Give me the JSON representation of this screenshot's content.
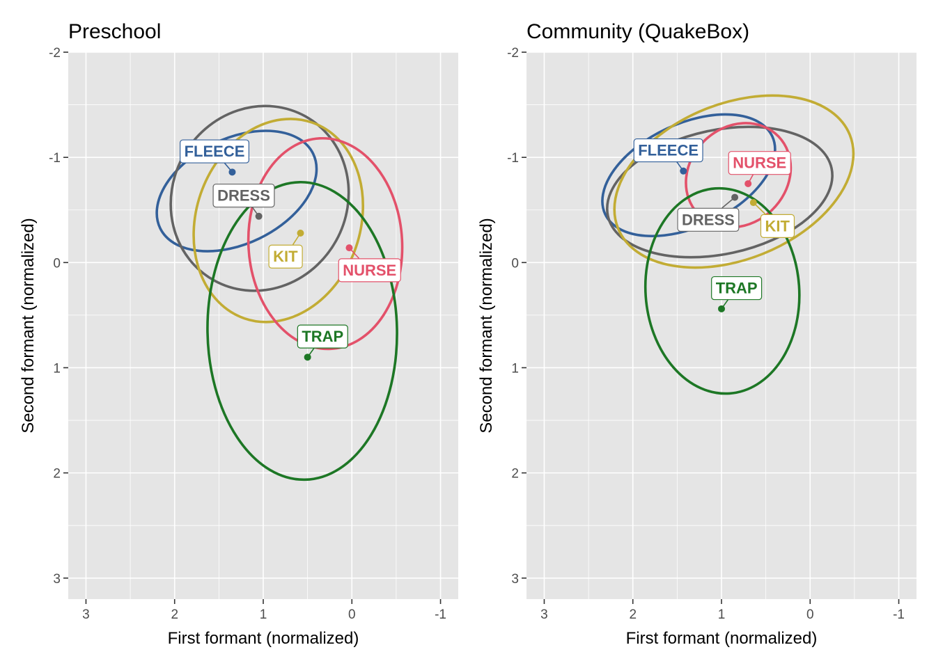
{
  "chart_data": [
    {
      "type": "scatter",
      "title": "Preschool",
      "xlabel": "First formant (normalized)",
      "ylabel": "Second formant (normalized)",
      "xlim": [
        3.2,
        -1.2
      ],
      "ylim": [
        -2.0,
        3.2
      ],
      "x_reversed": true,
      "y_reversed": true,
      "x_ticks": [
        3,
        2,
        1,
        0,
        -1
      ],
      "x_tick_labels": [
        "3",
        "2",
        "1",
        "0",
        "-1"
      ],
      "y_ticks": [
        -2,
        -1,
        0,
        1,
        2,
        3
      ],
      "y_tick_labels": [
        "-2",
        "-1",
        "0",
        "1",
        "2",
        "3"
      ],
      "grid": true,
      "series": [
        {
          "name": "FLEECE",
          "color": "#33609a",
          "mean": [
            1.35,
            -0.86
          ],
          "label_pos": [
            1.55,
            -1.06
          ],
          "ellipse": [
            [
              1.3,
              -0.68
            ],
            [
              0.96,
              0.5
            ],
            -26
          ]
        },
        {
          "name": "DRESS",
          "color": "#636363",
          "mean": [
            1.05,
            -0.44
          ],
          "label_pos": [
            1.22,
            -0.64
          ],
          "ellipse": [
            [
              1.04,
              -0.61
            ],
            [
              1.06,
              0.83
            ],
            -61
          ]
        },
        {
          "name": "KIT",
          "color": "#c2ac34",
          "mean": [
            0.58,
            -0.28
          ],
          "label_pos": [
            0.75,
            -0.06
          ],
          "ellipse": [
            [
              0.83,
              -0.4
            ],
            [
              1.17,
              0.78
            ],
            -71
          ]
        },
        {
          "name": "NURSE",
          "color": "#e3516a",
          "mean": [
            0.03,
            -0.14
          ],
          "label_pos": [
            -0.2,
            0.07
          ],
          "ellipse": [
            [
              0.3,
              -0.18
            ],
            [
              1.19,
              0.73
            ],
            -93
          ]
        },
        {
          "name": "TRAP",
          "color": "#1d7725",
          "mean": [
            0.5,
            0.9
          ],
          "label_pos": [
            0.33,
            0.7
          ],
          "ellipse": [
            [
              0.56,
              0.65
            ],
            [
              1.68,
              0.9
            ],
            -91
          ]
        }
      ]
    },
    {
      "type": "scatter",
      "title": "Community (QuakeBox)",
      "xlabel": "First formant (normalized)",
      "ylabel": "Second formant (normalized)",
      "xlim": [
        3.2,
        -1.2
      ],
      "ylim": [
        -2.0,
        3.2
      ],
      "x_reversed": true,
      "y_reversed": true,
      "x_ticks": [
        3,
        2,
        1,
        0,
        -1
      ],
      "x_tick_labels": [
        "3",
        "2",
        "1",
        "0",
        "-1"
      ],
      "y_ticks": [
        -2,
        -1,
        0,
        1,
        2,
        3
      ],
      "y_tick_labels": [
        "-2",
        "-1",
        "0",
        "1",
        "2",
        "3"
      ],
      "grid": true,
      "series": [
        {
          "name": "FLEECE",
          "color": "#33609a",
          "mean": [
            1.43,
            -0.87
          ],
          "label_pos": [
            1.6,
            -1.07
          ],
          "ellipse": [
            [
              1.37,
              -0.83
            ],
            [
              1.04,
              0.49
            ],
            -25
          ]
        },
        {
          "name": "DRESS",
          "color": "#636363",
          "mean": [
            0.85,
            -0.62
          ],
          "label_pos": [
            1.15,
            -0.41
          ],
          "ellipse": [
            [
              1.02,
              -0.67
            ],
            [
              1.29,
              0.59
            ],
            -12
          ]
        },
        {
          "name": "KIT",
          "color": "#c2ac34",
          "mean": [
            0.64,
            -0.57
          ],
          "label_pos": [
            0.37,
            -0.35
          ],
          "ellipse": [
            [
              0.86,
              -0.77
            ],
            [
              1.41,
              0.74
            ],
            -22
          ]
        },
        {
          "name": "NURSE",
          "color": "#e3516a",
          "mean": [
            0.7,
            -0.75
          ],
          "label_pos": [
            0.57,
            -0.95
          ],
          "ellipse": [
            [
              0.81,
              -0.83
            ],
            [
              0.63,
              0.46
            ],
            -44
          ]
        },
        {
          "name": "TRAP",
          "color": "#1d7725",
          "mean": [
            1.0,
            0.44
          ],
          "label_pos": [
            0.83,
            0.24
          ],
          "ellipse": [
            [
              0.99,
              0.27
            ],
            [
              1.16,
              0.73
            ],
            -94
          ]
        }
      ]
    }
  ]
}
